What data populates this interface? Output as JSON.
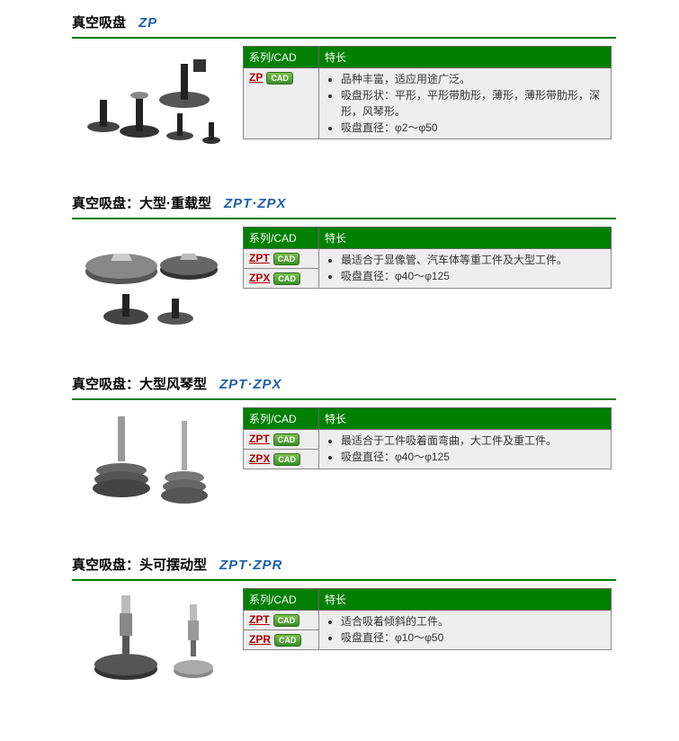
{
  "colors": {
    "header_green": "#008000",
    "title_blue": "#1b5fa6",
    "link_red": "#b00000",
    "cell_bg": "#eeeeee",
    "border": "#888888"
  },
  "table_headers": {
    "col1": "系列/CAD",
    "col2": "特长"
  },
  "cad_label": "CAD",
  "sections": [
    {
      "title_jp": "真空吸盘",
      "title_code": "ZP",
      "image_type": "zp",
      "rows": [
        {
          "series": "ZP",
          "features": [
            "品种丰富，适应用途广泛。",
            "吸盘形状：平形，平形带肋形，薄形，薄形带肋形，深形，风琴形。",
            "吸盘直径：φ2～φ50"
          ]
        }
      ]
    },
    {
      "title_jp": "真空吸盘：大型·重载型",
      "title_code": "ZPT·ZPX",
      "image_type": "zpt_heavy",
      "rows": [
        {
          "series": "ZPT",
          "features": [
            "最适合于显像管、汽车体等重工件及大型工件。",
            "吸盘直径：φ40～φ125"
          ],
          "rowspan_features": 2
        },
        {
          "series": "ZPX"
        }
      ]
    },
    {
      "title_jp": "真空吸盘：大型风琴型",
      "title_code": "ZPT·ZPX",
      "image_type": "zpt_bellows",
      "rows": [
        {
          "series": "ZPT",
          "features": [
            "最适合于工件吸着面弯曲，大工件及重工件。",
            "吸盘直径：φ40～φ125"
          ],
          "rowspan_features": 2
        },
        {
          "series": "ZPX"
        }
      ]
    },
    {
      "title_jp": "真空吸盘：头可摆动型",
      "title_code": "ZPT·ZPR",
      "image_type": "zpt_swing",
      "rows": [
        {
          "series": "ZPT",
          "features": [
            "适合吸着倾斜的工件。",
            "吸盘直径：φ10～φ50"
          ],
          "rowspan_features": 2
        },
        {
          "series": "ZPR"
        }
      ]
    }
  ]
}
